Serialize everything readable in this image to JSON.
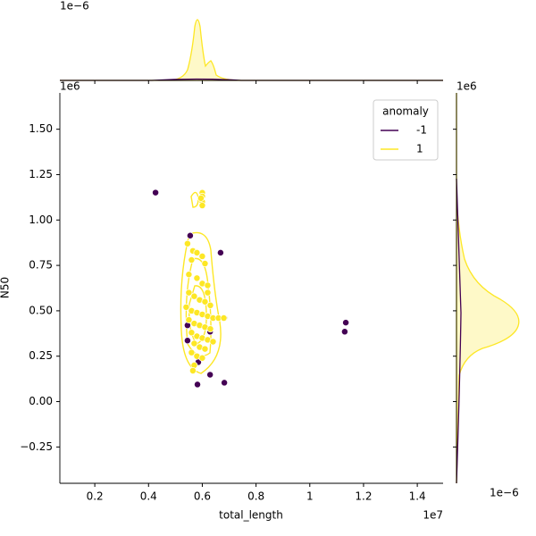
{
  "chart_data": {
    "type": "scatter",
    "xlabel": "total_length",
    "ylabel": "N50",
    "x_offset_text": "1e7",
    "y_offset_text": "1e6",
    "top_marginal_offset_text": "1e−6",
    "right_marginal_offset_text": "1e−6",
    "legend_title": "anomaly",
    "legend": "upper right",
    "xlim": [
      0.07,
      1.496
    ],
    "ylim": [
      -0.45,
      1.7
    ],
    "xticks": [
      0.2,
      0.4,
      0.6,
      0.8,
      1.0,
      1.2,
      1.4
    ],
    "yticks": [
      {
        "value": -0.25,
        "label": "−0.25"
      },
      {
        "value": 0,
        "label": "0.00"
      },
      {
        "value": 0.25,
        "label": "0.25"
      },
      {
        "value": 0.5,
        "label": "0.50"
      },
      {
        "value": 0.75,
        "label": "0.75"
      },
      {
        "value": 1.0,
        "label": "1.00"
      },
      {
        "value": 1.25,
        "label": "1.25"
      },
      {
        "value": 1.5,
        "label": "1.50"
      }
    ],
    "series": [
      {
        "name": "-1",
        "color": "#440154",
        "x": [
          0.426,
          0.555,
          0.668,
          0.682,
          0.629,
          1.134,
          1.13,
          0.585,
          0.629,
          0.582,
          0.682,
          0.545,
          0.545
        ],
        "values": [
          1.151,
          0.914,
          0.82,
          0.46,
          0.385,
          0.435,
          0.385,
          0.217,
          0.148,
          0.094,
          0.104,
          0.42,
          0.336
        ]
      },
      {
        "name": "1",
        "color": "#fde725",
        "x": [
          0.6,
          0.6,
          0.6,
          0.6,
          0.595,
          0.545,
          0.565,
          0.58,
          0.6,
          0.56,
          0.61,
          0.55,
          0.58,
          0.6,
          0.62,
          0.55,
          0.57,
          0.59,
          0.61,
          0.63,
          0.54,
          0.56,
          0.58,
          0.6,
          0.62,
          0.64,
          0.66,
          0.55,
          0.57,
          0.59,
          0.61,
          0.63,
          0.56,
          0.58,
          0.6,
          0.62,
          0.64,
          0.57,
          0.59,
          0.61,
          0.56,
          0.58,
          0.6,
          0.57,
          0.565,
          0.62,
          0.68
        ],
        "values": [
          1.15,
          1.13,
          1.1,
          1.08,
          1.12,
          0.87,
          0.83,
          0.82,
          0.8,
          0.78,
          0.76,
          0.7,
          0.68,
          0.65,
          0.64,
          0.6,
          0.58,
          0.56,
          0.55,
          0.53,
          0.52,
          0.5,
          0.49,
          0.48,
          0.47,
          0.46,
          0.46,
          0.45,
          0.43,
          0.42,
          0.41,
          0.4,
          0.38,
          0.36,
          0.35,
          0.34,
          0.33,
          0.32,
          0.3,
          0.29,
          0.27,
          0.25,
          0.24,
          0.2,
          0.17,
          0.6,
          0.46
        ]
      }
    ]
  }
}
